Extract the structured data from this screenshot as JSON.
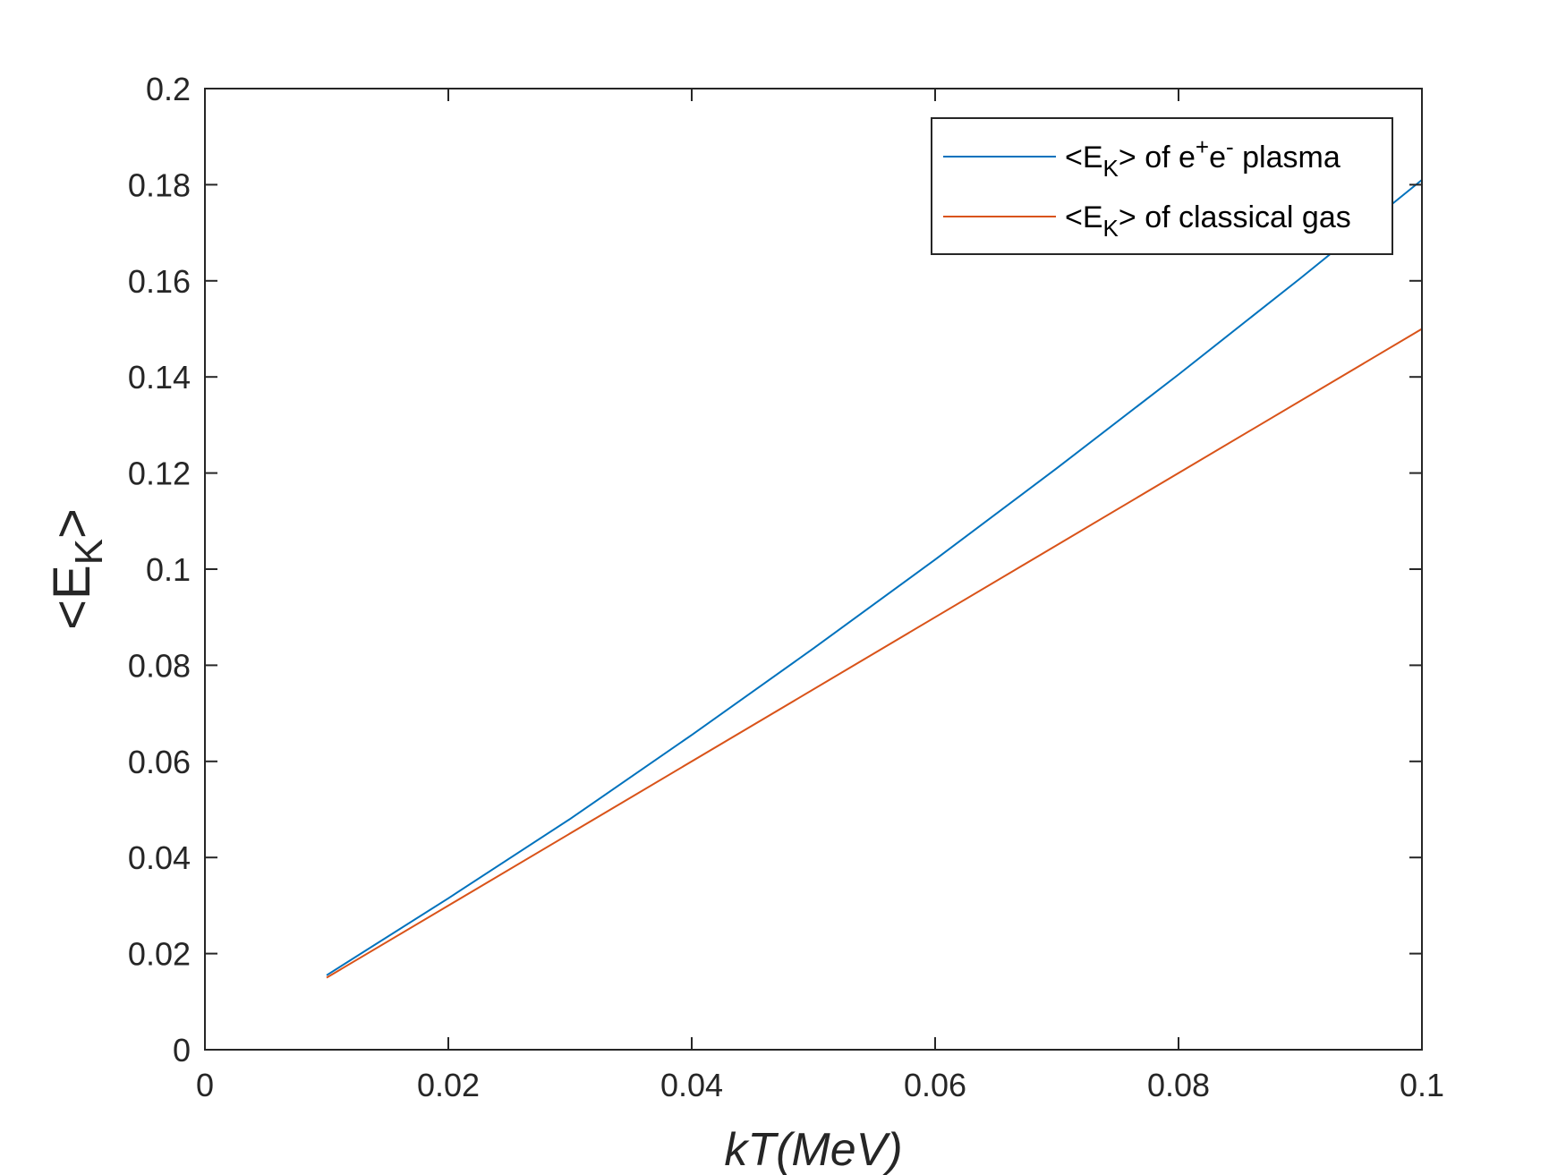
{
  "chart_data": {
    "type": "line",
    "xlabel": "kT(MeV)",
    "ylabel": {
      "main": "<E",
      "sub": "K",
      "tail": ">"
    },
    "xlim": [
      0,
      0.1
    ],
    "ylim": [
      0,
      0.2
    ],
    "xticks": [
      "0",
      "0.02",
      "0.04",
      "0.06",
      "0.08",
      "0.1"
    ],
    "yticks": [
      "0",
      "0.02",
      "0.04",
      "0.06",
      "0.08",
      "0.1",
      "0.12",
      "0.14",
      "0.16",
      "0.18",
      "0.2"
    ],
    "grid": false,
    "legend_position": "top-right",
    "series": [
      {
        "name": "<EK> of e+e- plasma",
        "legend": {
          "p1": "<E",
          "sub": "K",
          "p2": "> of e",
          "sup1": "+",
          "p3": "e",
          "sup2": "-",
          "p4": " plasma"
        },
        "color": "#0072BD",
        "x": [
          0.01,
          0.02,
          0.03,
          0.04,
          0.05,
          0.06,
          0.07,
          0.08,
          0.09,
          0.1
        ],
        "y": [
          0.0155,
          0.0315,
          0.048,
          0.0655,
          0.0835,
          0.102,
          0.121,
          0.1405,
          0.1605,
          0.181
        ]
      },
      {
        "name": "<EK> of classical gas",
        "legend": {
          "p1": "<E",
          "sub": "K",
          "p2": "> of classical gas"
        },
        "color": "#D95319",
        "x": [
          0.01,
          0.1
        ],
        "y": [
          0.015,
          0.15
        ]
      }
    ]
  }
}
